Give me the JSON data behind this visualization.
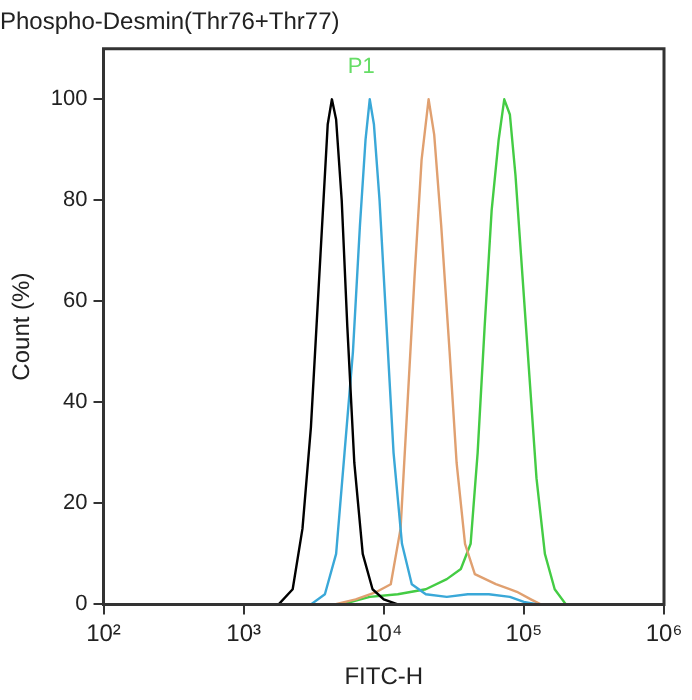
{
  "chart_data": {
    "type": "line",
    "title": "Phospho-Desmin(Thr76+Thr77)",
    "xlabel": "FITC-H",
    "ylabel": "Count (%)",
    "log": "x",
    "xlim": [
      100,
      1000000
    ],
    "ylim": [
      0,
      110
    ],
    "xticks": [
      {
        "value": 100,
        "label": "10²"
      },
      {
        "value": 1000,
        "label": "10³"
      },
      {
        "value": 10000,
        "label": "10⁴"
      },
      {
        "value": 100000,
        "label": "10⁵"
      },
      {
        "value": 1000000,
        "label": "10⁶"
      }
    ],
    "yticks": [
      0,
      20,
      40,
      60,
      80,
      100
    ],
    "grid": false,
    "legend": false,
    "marker": "none",
    "line_style": "solid",
    "annotations": [
      "P1"
    ],
    "series": [
      {
        "color": "#000000",
        "x": [
          1778,
          2239,
          2630,
          3020,
          3388,
          3715,
          3981,
          4266,
          4571,
          5012,
          5495,
          6166,
          7079,
          8318,
          10000,
          12589
        ],
        "values": [
          0,
          3,
          15,
          35,
          60,
          80,
          95,
          100,
          96,
          80,
          55,
          28,
          10,
          3,
          1,
          0
        ]
      },
      {
        "color": "#3aa8d8",
        "x": [
          3020,
          3802,
          4571,
          5248,
          6026,
          6761,
          7413,
          7943,
          8511,
          9333,
          10471,
          11749,
          13490,
          15849,
          19953,
          28184,
          39811,
          56234,
          79433,
          100000,
          125893
        ],
        "values": [
          0,
          2,
          10,
          30,
          50,
          75,
          92,
          100,
          95,
          80,
          55,
          30,
          12,
          4,
          2,
          1.5,
          2,
          2,
          1.5,
          0.5,
          0
        ]
      },
      {
        "color": "#e0a070",
        "x": [
          4467,
          6310,
          8913,
          11220,
          13183,
          14791,
          16596,
          18621,
          20893,
          22909,
          25704,
          29512,
          33113,
          38019,
          44668,
          63096,
          89125,
          112202,
          131826
        ],
        "values": [
          0,
          1,
          2.5,
          4,
          15,
          40,
          65,
          88,
          100,
          93,
          75,
          50,
          28,
          12,
          6,
          4,
          2.5,
          1,
          0
        ]
      },
      {
        "color": "#44cc44",
        "x": [
          5012,
          7943,
          12589,
          19953,
          28184,
          35481,
          41687,
          46774,
          52481,
          58884,
          66069,
          72444,
          79433,
          87096,
          97724,
          109648,
          123027,
          141254,
          165959,
          199526
        ],
        "values": [
          0,
          1.5,
          2,
          3,
          5,
          7,
          12,
          30,
          55,
          78,
          92,
          100,
          97,
          85,
          65,
          45,
          25,
          10,
          3,
          0
        ]
      }
    ]
  }
}
